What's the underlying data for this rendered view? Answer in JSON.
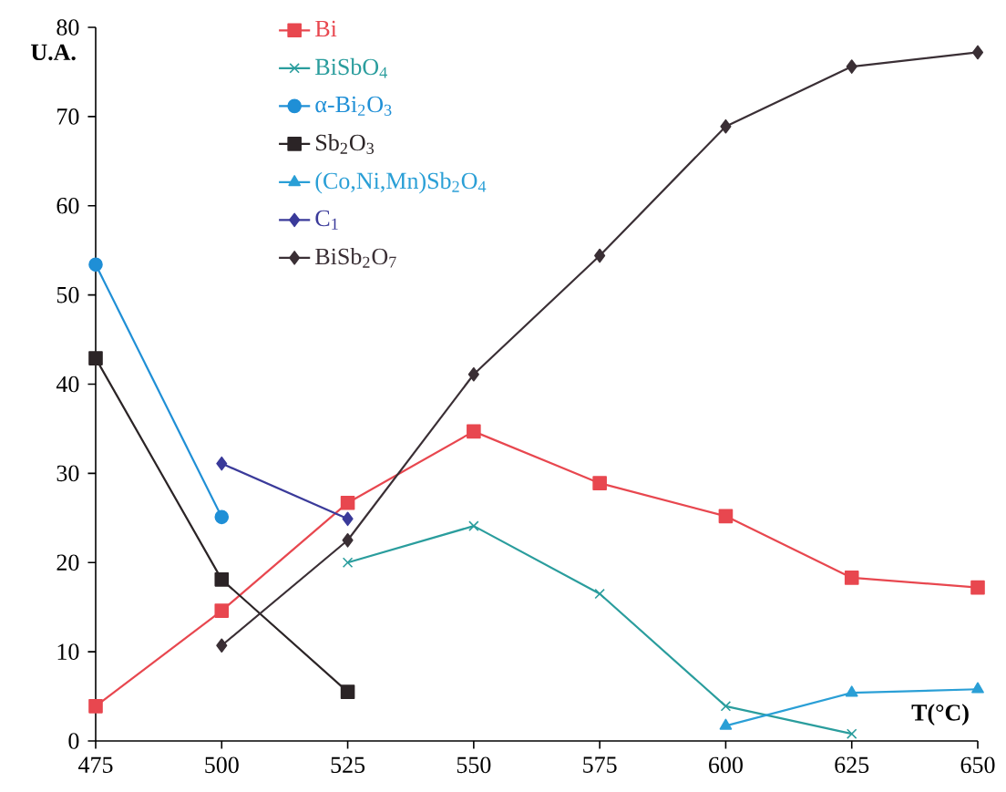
{
  "chart_data": {
    "type": "line",
    "xlabel": "T(°C)",
    "ylabel": "U.A.",
    "x": [
      475,
      500,
      525,
      550,
      575,
      600,
      625,
      650
    ],
    "xlim": [
      475,
      650
    ],
    "xticks": [
      475,
      500,
      525,
      550,
      575,
      600,
      625,
      650
    ],
    "ylim": [
      0,
      80
    ],
    "yticks": [
      0,
      10,
      20,
      30,
      40,
      50,
      60,
      70,
      80
    ],
    "legend": "top left",
    "grid": false,
    "series": [
      {
        "name": "Bi",
        "color": "#e8474f",
        "marker": "square",
        "values": [
          3.9,
          14.6,
          26.7,
          34.7,
          28.9,
          25.2,
          18.3,
          17.2
        ]
      },
      {
        "name": "BiSbO$_{4}$",
        "color": "#2a9d9d",
        "marker": "cross",
        "values": [
          null,
          null,
          20.0,
          24.1,
          16.5,
          3.9,
          0.8,
          null
        ]
      },
      {
        "name": "α-Bi$_{2}$O$_{3}$",
        "color": "#1f8fd6",
        "marker": "circle",
        "values": [
          53.4,
          25.1,
          null,
          null,
          null,
          null,
          null,
          null
        ]
      },
      {
        "name": "Sb$_{2}$O$_{3}$",
        "color": "#2b2426",
        "marker": "square",
        "values": [
          42.9,
          18.1,
          5.5,
          null,
          null,
          null,
          null,
          null
        ]
      },
      {
        "name": "(Co,Ni,Mn)Sb$_{2}$O$_{4}$",
        "color": "#2a9fd6",
        "marker": "triangle",
        "values": [
          null,
          null,
          null,
          null,
          null,
          1.7,
          5.4,
          5.8
        ]
      },
      {
        "name": "C$_{1}$",
        "color": "#3a3a9a",
        "marker": "diamond",
        "values": [
          null,
          31.1,
          24.9,
          null,
          null,
          null,
          null,
          null
        ]
      },
      {
        "name": "BiSb$_{2}$O$_{7}$",
        "color": "#3a2f35",
        "marker": "diamond",
        "values": [
          null,
          10.7,
          22.5,
          41.1,
          54.4,
          68.9,
          75.6,
          77.2
        ]
      }
    ]
  }
}
